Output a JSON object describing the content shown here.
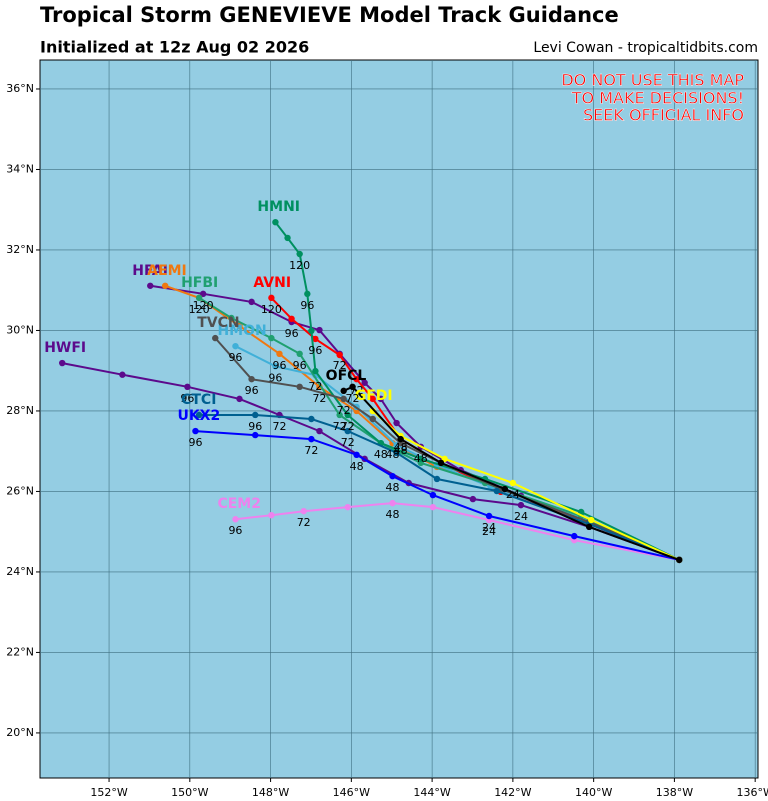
{
  "header": {
    "title": "Tropical Storm GENEVIEVE Model Track Guidance",
    "subtitle": "Initialized at 12z Aug 02 2026",
    "credit": "Levi Cowan - tropicaltidbits.com"
  },
  "warning": [
    "DO NOT USE THIS MAP",
    "TO MAKE DECISIONS!",
    "SEEK OFFICIAL INFO"
  ],
  "map": {
    "xlim": [
      -153.71,
      -135.93
    ],
    "ylim": [
      18.88,
      36.72
    ],
    "xticks": [
      {
        "value": -152,
        "label": "152°W"
      },
      {
        "value": -150,
        "label": "150°W"
      },
      {
        "value": -148,
        "label": "148°W"
      },
      {
        "value": -146,
        "label": "146°W"
      },
      {
        "value": -144,
        "label": "144°W"
      },
      {
        "value": -142,
        "label": "142°W"
      },
      {
        "value": -140,
        "label": "140°W"
      },
      {
        "value": -138,
        "label": "138°W"
      },
      {
        "value": -136,
        "label": "136°W"
      }
    ],
    "yticks": [
      {
        "value": 20,
        "label": "20°N"
      },
      {
        "value": 22,
        "label": "22°N"
      },
      {
        "value": 24,
        "label": "24°N"
      },
      {
        "value": 26,
        "label": "26°N"
      },
      {
        "value": 28,
        "label": "28°N"
      },
      {
        "value": 30,
        "label": "30°N"
      },
      {
        "value": 32,
        "label": "32°N"
      },
      {
        "value": 34,
        "label": "34°N"
      },
      {
        "value": 36,
        "label": "36°N"
      }
    ],
    "grid": true,
    "tracks": [
      {
        "name": "CEM2",
        "color": "#ee82ee",
        "lon": [
          -137.88,
          -140.48,
          -142.59,
          -143.98,
          -144.98,
          -146.09,
          -147.18,
          -147.98,
          -148.87
        ],
        "lat": [
          24.3,
          24.79,
          25.29,
          25.61,
          25.71,
          25.61,
          25.51,
          25.41,
          25.31
        ],
        "hours": [
          null,
          null,
          "24",
          null,
          "48",
          null,
          "72",
          null,
          "96"
        ]
      },
      {
        "name": "HWFI",
        "color": "#5c0a8c",
        "lon": [
          -137.88,
          -140.11,
          -141.8,
          -142.99,
          -144.58,
          -145.67,
          -146.79,
          -147.78,
          -148.77,
          -150.06,
          -151.67,
          -153.16
        ],
        "lat": [
          24.3,
          25.12,
          25.66,
          25.81,
          26.21,
          26.81,
          27.5,
          27.9,
          28.3,
          28.6,
          28.9,
          29.19
        ],
        "hours": [
          null,
          null,
          "24",
          null,
          null,
          null,
          null,
          "72",
          null,
          "96",
          null,
          null
        ]
      },
      {
        "name": "HFAI",
        "color": "#5c0a8c",
        "lon": [
          -137.88,
          -140.31,
          -141.8,
          -143.29,
          -144.28,
          -144.88,
          -145.27,
          -145.67,
          -146.29,
          -146.79,
          -147.48,
          -148.47,
          -149.67,
          -150.98
        ],
        "lat": [
          24.3,
          25.29,
          25.89,
          26.53,
          27.11,
          27.7,
          28.3,
          28.7,
          29.42,
          30.01,
          30.21,
          30.71,
          30.91,
          31.11
        ],
        "hours": [
          null,
          null,
          null,
          null,
          "48",
          null,
          null,
          null,
          "72",
          null,
          "96",
          null,
          "120",
          null
        ]
      },
      {
        "name": "AVNI",
        "color": "#ff0000",
        "lon": [
          -137.88,
          -140.11,
          -142.3,
          -143.78,
          -144.78,
          -145.47,
          -145.87,
          -146.29,
          -146.89,
          -147.48,
          -147.98
        ],
        "lat": [
          24.3,
          25.19,
          25.99,
          26.71,
          27.3,
          28.3,
          28.79,
          29.39,
          29.79,
          30.29,
          30.81
        ],
        "hours": [
          null,
          null,
          null,
          null,
          null,
          null,
          "72",
          null,
          "96",
          null,
          "120"
        ]
      },
      {
        "name": "AEMI",
        "color": "#f07810",
        "lon": [
          -137.88,
          -140.06,
          -142.3,
          -143.88,
          -144.98,
          -145.87,
          -146.79,
          -147.78,
          -148.77,
          -149.77,
          -150.61
        ],
        "lat": [
          24.3,
          25.22,
          26.06,
          26.61,
          27.2,
          28.0,
          28.6,
          29.42,
          30.11,
          30.81,
          31.11
        ],
        "hours": [
          null,
          null,
          null,
          null,
          "48",
          null,
          "72",
          "96",
          null,
          null,
          null
        ]
      },
      {
        "name": "HMON",
        "color": "#40b0d8",
        "lon": [
          -137.88,
          -140.31,
          -142.55,
          -143.88,
          -144.88,
          -145.87,
          -146.89,
          -147.88,
          -148.87
        ],
        "lat": [
          24.3,
          25.34,
          26.11,
          26.66,
          27.15,
          28.1,
          28.89,
          29.11,
          29.61
        ],
        "hours": [
          null,
          null,
          null,
          null,
          null,
          null,
          "72",
          "96",
          "96"
        ]
      },
      {
        "name": "HFBI",
        "color": "#20a070",
        "lon": [
          -137.88,
          -140.31,
          -142.69,
          -144.28,
          -145.27,
          -146.29,
          -147.28,
          -147.98,
          -148.97,
          -149.77
        ],
        "lat": [
          24.3,
          25.39,
          26.21,
          26.71,
          27.2,
          27.9,
          29.42,
          29.81,
          30.31,
          30.81
        ],
        "hours": [
          null,
          null,
          null,
          null,
          null,
          "72",
          "96",
          null,
          null,
          "120"
        ]
      },
      {
        "name": "HMNI",
        "color": "#009060",
        "lon": [
          -137.88,
          -140.31,
          -142.69,
          -144.28,
          -145.27,
          -146.09,
          -146.89,
          -146.99,
          -147.09,
          -147.28,
          -147.58,
          -147.88
        ],
        "lat": [
          24.3,
          25.49,
          26.31,
          26.81,
          27.2,
          27.9,
          28.99,
          29.99,
          30.91,
          31.9,
          32.3,
          32.69
        ],
        "hours": [
          null,
          null,
          null,
          null,
          "48",
          "72",
          null,
          null,
          "96",
          "120",
          null,
          null
        ]
      },
      {
        "name": "TVCN",
        "color": "#505050",
        "lon": [
          -137.88,
          -140.11,
          -142.3,
          -143.78,
          -144.78,
          -145.47,
          -146.19,
          -147.28,
          -148.47,
          -149.37
        ],
        "lat": [
          24.3,
          25.24,
          26.06,
          26.71,
          27.2,
          27.8,
          28.3,
          28.6,
          28.79,
          29.81
        ],
        "hours": [
          null,
          null,
          null,
          null,
          null,
          null,
          "72",
          null,
          "96",
          null
        ]
      },
      {
        "name": "CTCI",
        "color": "#006090",
        "lon": [
          -137.88,
          -140.11,
          -142.4,
          -143.88,
          -144.88,
          -146.09,
          -146.99,
          -148.38,
          -149.77
        ],
        "lat": [
          24.3,
          25.19,
          26.01,
          26.31,
          26.96,
          27.5,
          27.8,
          27.9,
          27.9
        ],
        "hours": [
          null,
          null,
          null,
          null,
          null,
          "72",
          null,
          "96",
          null
        ]
      },
      {
        "name": "UKX2",
        "color": "#0000ff",
        "lon": [
          -137.88,
          -140.48,
          -142.59,
          -143.98,
          -144.98,
          -145.87,
          -146.99,
          -148.38,
          -149.86
        ],
        "lat": [
          24.3,
          24.89,
          25.39,
          25.91,
          26.38,
          26.91,
          27.3,
          27.4,
          27.5
        ],
        "hours": [
          null,
          null,
          "24",
          null,
          "48",
          "48",
          "72",
          null,
          "96"
        ]
      },
      {
        "name": "GFDI",
        "color": "#ffff00",
        "lon": [
          -137.88,
          -140.06,
          -142.0,
          -143.69,
          -144.78,
          -145.47
        ],
        "lat": [
          24.3,
          25.29,
          26.21,
          26.81,
          27.38,
          28.0
        ],
        "hours": [
          null,
          null,
          "24",
          null,
          "48",
          null
        ]
      },
      {
        "name": "OFCL",
        "color": "#000000",
        "lon": [
          -137.88,
          -140.11,
          -142.2,
          -143.78,
          -144.78,
          -145.97,
          -146.19
        ],
        "lat": [
          24.3,
          25.12,
          26.06,
          26.71,
          27.3,
          28.6,
          28.5
        ],
        "hours": [
          null,
          null,
          null,
          null,
          "48",
          "72",
          null
        ]
      }
    ]
  }
}
